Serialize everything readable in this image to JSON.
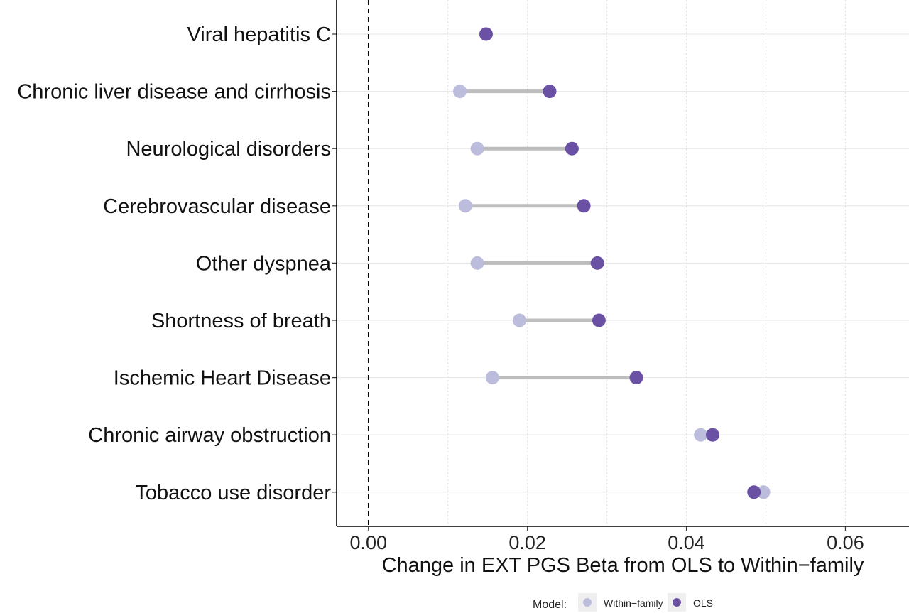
{
  "chart_data": {
    "type": "dumbbell",
    "xlabel": "Change in EXT PGS Beta from OLS to Within−family",
    "xlim": [
      -0.004,
      0.068
    ],
    "xticks": [
      0.0,
      0.02,
      0.04,
      0.06
    ],
    "xtick_labels": [
      "0.00",
      "0.02",
      "0.04",
      "0.06"
    ],
    "reference_line": {
      "x": 0,
      "style": "dashed"
    },
    "grid": {
      "vertical_dotted": true,
      "horizontal": true
    },
    "categories": [
      "Viral hepatitis C",
      "Chronic liver disease and cirrhosis",
      "Neurological disorders",
      "Cerebrovascular disease",
      "Other dyspnea",
      "Shortness of breath",
      "Ischemic Heart Disease",
      "Chronic airway obstruction",
      "Tobacco use disorder"
    ],
    "series": [
      {
        "name": "Within−family",
        "color": "#bcbddc",
        "values": [
          null,
          0.0115,
          0.0137,
          0.0122,
          0.0137,
          0.019,
          0.0156,
          0.0418,
          0.0497
        ]
      },
      {
        "name": "OLS",
        "color": "#6a51a3",
        "values": [
          0.0148,
          0.0228,
          0.0256,
          0.0271,
          0.0288,
          0.029,
          0.0337,
          0.0433,
          0.0485
        ]
      }
    ],
    "legend": {
      "title": "Model:",
      "position": "bottom",
      "entries": [
        "Within−family",
        "OLS"
      ]
    }
  }
}
